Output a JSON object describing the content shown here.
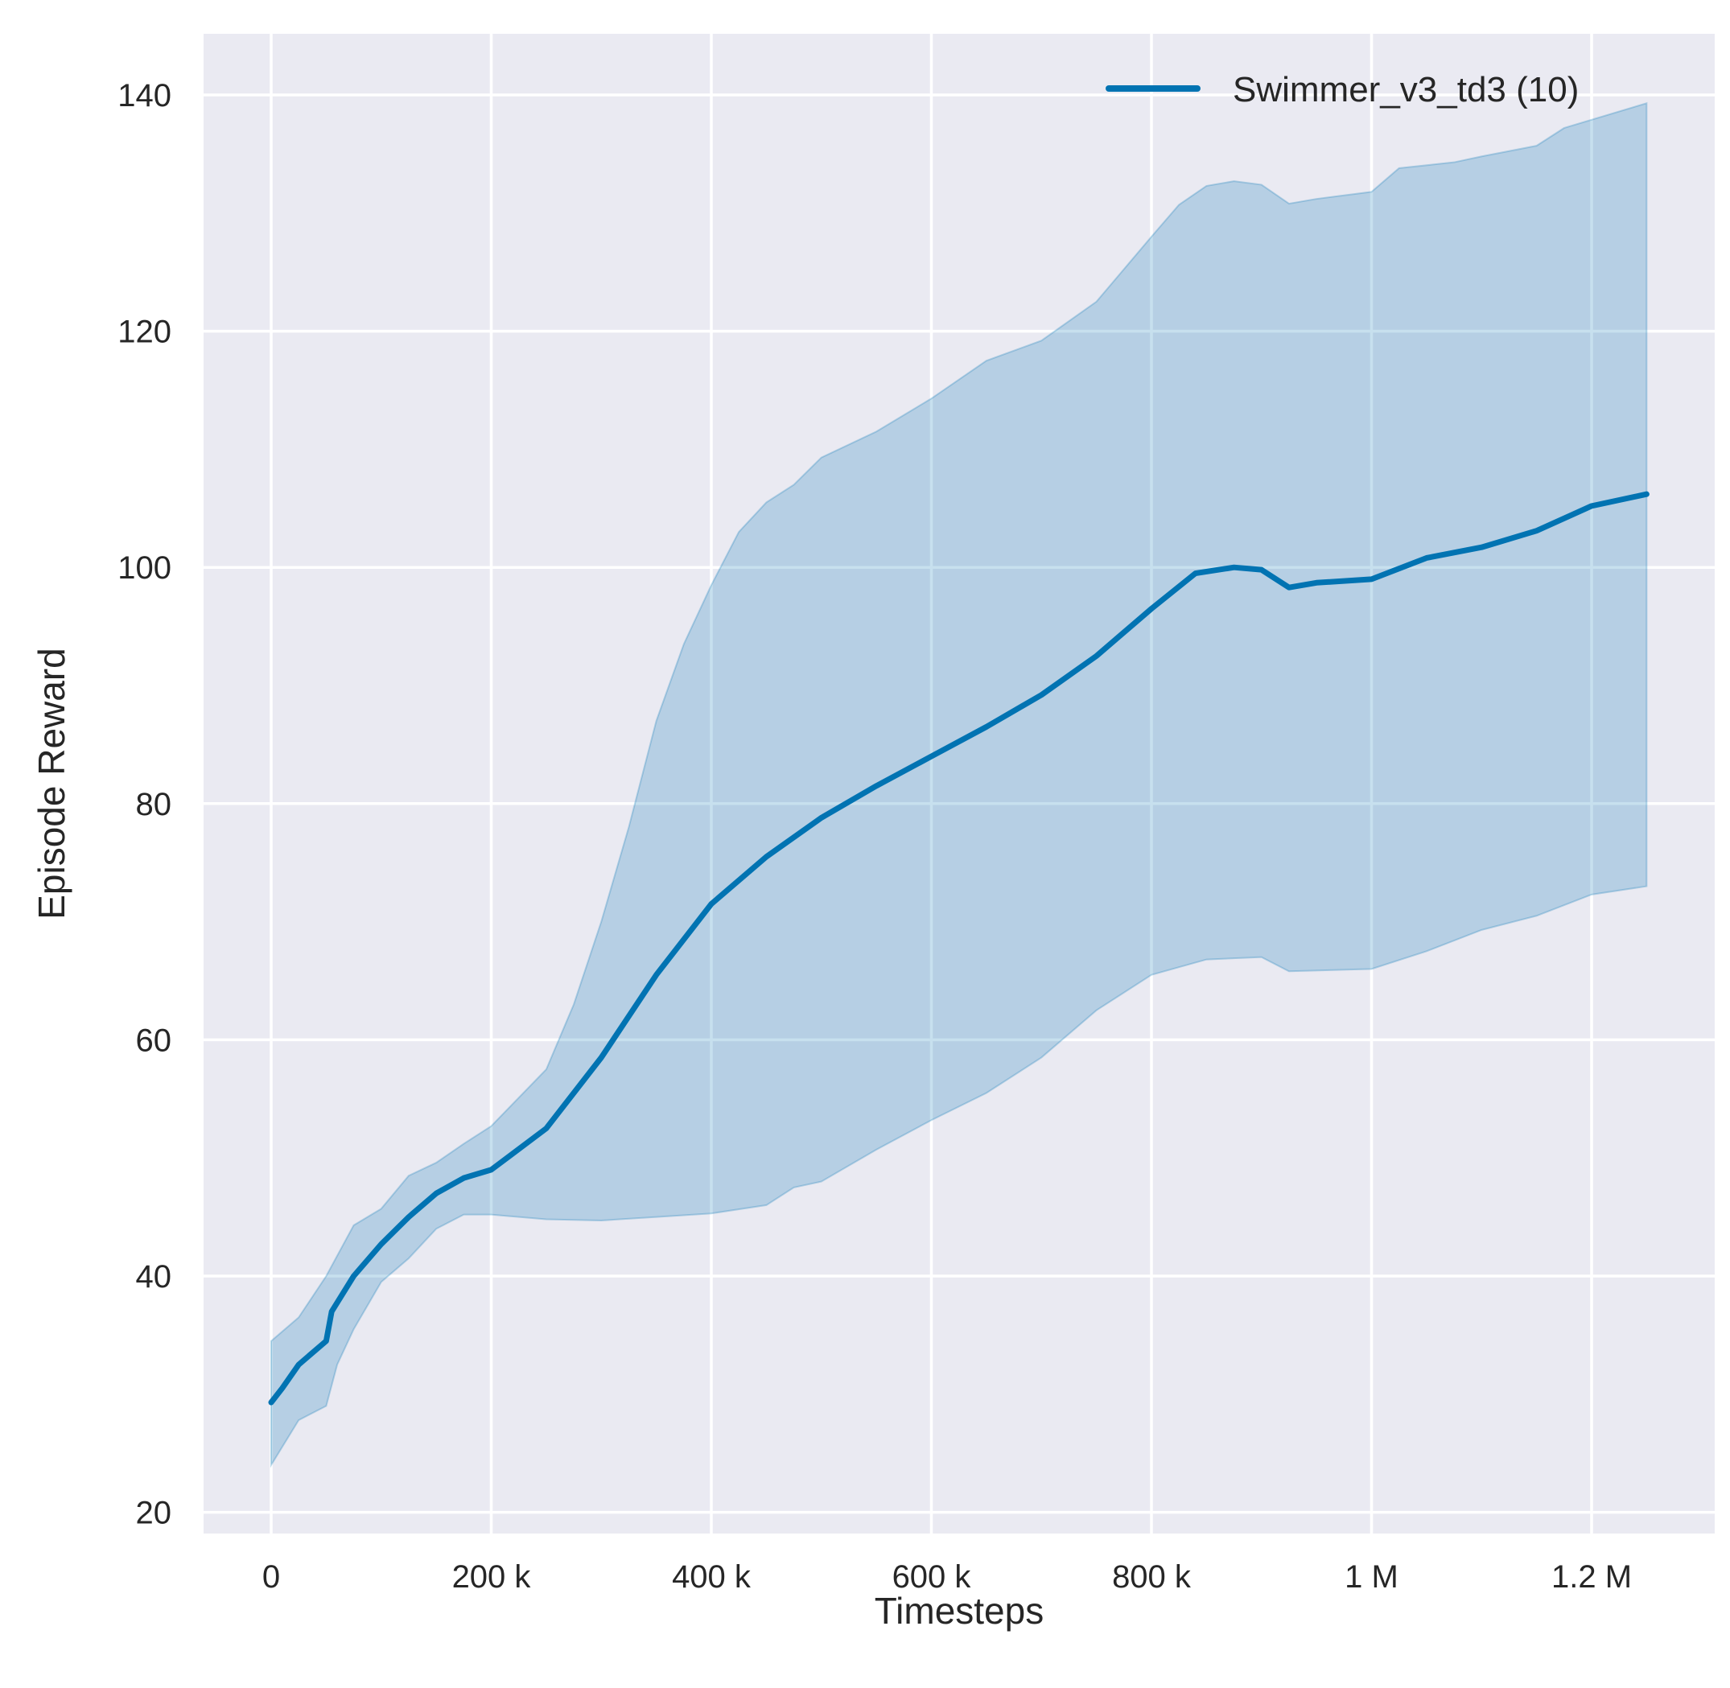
{
  "chart_data": {
    "type": "line",
    "title": "",
    "xlabel": "Timesteps",
    "ylabel": "Episode Reward",
    "xlim": [
      -60000,
      1310000
    ],
    "ylim": [
      18,
      145
    ],
    "grid": true,
    "legend_position": "top-right",
    "x_ticks": [
      0,
      200000,
      400000,
      600000,
      800000,
      1000000,
      1200000
    ],
    "x_tick_labels": [
      "0",
      "200 k",
      "400 k",
      "600 k",
      "800 k",
      "1 M",
      "1.2 M"
    ],
    "y_ticks": [
      20,
      40,
      60,
      80,
      100,
      120,
      140
    ],
    "y_tick_labels": [
      "20",
      "40",
      "60",
      "80",
      "100",
      "120",
      "140"
    ],
    "colors": {
      "line": "#0173b2",
      "band": "#0173b2",
      "background": "#eaeaf2",
      "grid": "#ffffff"
    },
    "series": [
      {
        "name": "Swimmer_v3_td3 (10)",
        "mean": {
          "x": [
            0,
            10000,
            25000,
            50000,
            55000,
            75000,
            100000,
            125000,
            150000,
            175000,
            200000,
            250000,
            300000,
            350000,
            400000,
            450000,
            500000,
            550000,
            600000,
            650000,
            700000,
            750000,
            800000,
            840000,
            875000,
            900000,
            925000,
            950000,
            1000000,
            1050000,
            1100000,
            1150000,
            1200000,
            1250000
          ],
          "y": [
            29.3,
            30.5,
            32.5,
            34.5,
            37,
            40,
            42.7,
            45,
            47,
            48.3,
            49,
            52.5,
            58.5,
            65.5,
            71.5,
            75.5,
            78.8,
            81.5,
            84,
            86.5,
            89.2,
            92.5,
            96.5,
            99.5,
            100,
            99.8,
            98.3,
            98.7,
            99,
            100.8,
            101.7,
            103.1,
            105.2,
            106.2
          ]
        },
        "upper": {
          "x": [
            0,
            25000,
            50000,
            75000,
            100000,
            125000,
            150000,
            175000,
            200000,
            250000,
            275000,
            300000,
            325000,
            350000,
            375000,
            400000,
            425000,
            450000,
            475000,
            500000,
            550000,
            600000,
            650000,
            700000,
            750000,
            800000,
            825000,
            850000,
            875000,
            900000,
            925000,
            950000,
            1000000,
            1025000,
            1075000,
            1100000,
            1150000,
            1175000,
            1250000
          ],
          "y": [
            34.5,
            36.5,
            40,
            44.3,
            45.7,
            48.5,
            49.6,
            51.2,
            52.7,
            57.5,
            63,
            70,
            78,
            87,
            93.5,
            98.5,
            103,
            105.5,
            107,
            109.3,
            111.5,
            114.3,
            117.5,
            119.2,
            122.5,
            128,
            130.7,
            132.3,
            132.7,
            132.4,
            130.8,
            131.2,
            131.8,
            133.8,
            134.3,
            134.8,
            135.7,
            137.2,
            139.3
          ]
        },
        "lower": {
          "x": [
            0,
            25000,
            50000,
            60000,
            75000,
            100000,
            125000,
            150000,
            175000,
            200000,
            250000,
            300000,
            350000,
            400000,
            450000,
            475000,
            500000,
            550000,
            600000,
            650000,
            700000,
            750000,
            800000,
            850000,
            900000,
            925000,
            1000000,
            1050000,
            1100000,
            1150000,
            1200000,
            1250000
          ],
          "y": [
            24,
            27.8,
            29,
            32.5,
            35.5,
            39.5,
            41.5,
            44,
            45.2,
            45.2,
            44.8,
            44.7,
            45,
            45.3,
            46,
            47.5,
            48,
            50.7,
            53.2,
            55.5,
            58.5,
            62.5,
            65.5,
            66.8,
            67,
            65.8,
            66,
            67.5,
            69.3,
            70.5,
            72.3,
            73
          ]
        }
      }
    ]
  }
}
